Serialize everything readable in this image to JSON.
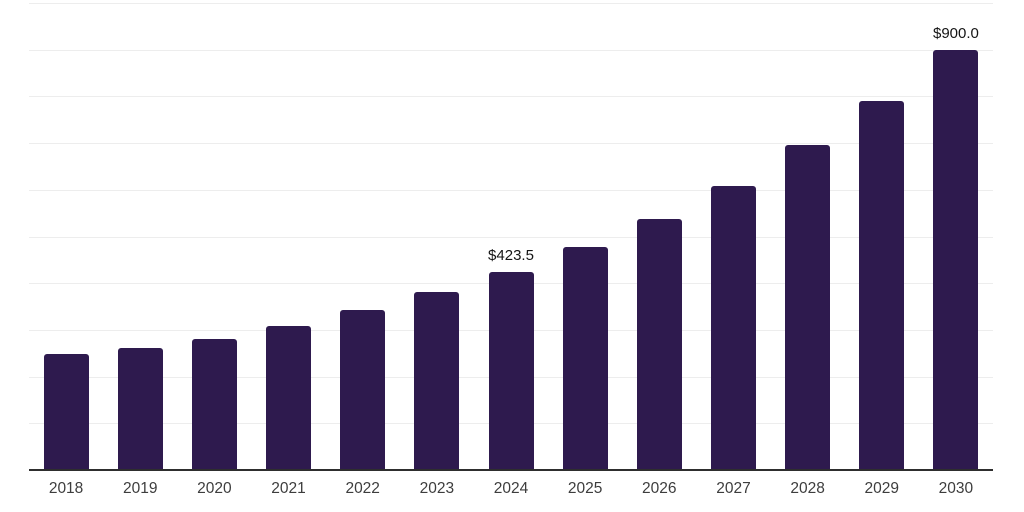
{
  "chart_data": {
    "type": "bar",
    "title": "",
    "xlabel": "",
    "ylabel": "",
    "categories": [
      "2018",
      "2019",
      "2020",
      "2021",
      "2022",
      "2023",
      "2024",
      "2025",
      "2026",
      "2027",
      "2028",
      "2029",
      "2030"
    ],
    "values": [
      248.5,
      261.5,
      281.5,
      308.5,
      343.5,
      381.0,
      423.5,
      477.5,
      536.5,
      608.0,
      695.0,
      789.5,
      900.0
    ],
    "data_labels": [
      {
        "category": "2024",
        "text": "$423.5"
      },
      {
        "category": "2030",
        "text": "$900.0"
      }
    ],
    "ylim": [
      0,
      1000
    ],
    "grid": "horizontal gridlines every 100, no y-axis tick labels",
    "legend": "none",
    "bar_color": "#2e1a4e",
    "gridline_color": "#ededed",
    "axis_color": "#2e2e2e",
    "label_color": "#141414",
    "tick_label_color": "#3d3d3d"
  }
}
